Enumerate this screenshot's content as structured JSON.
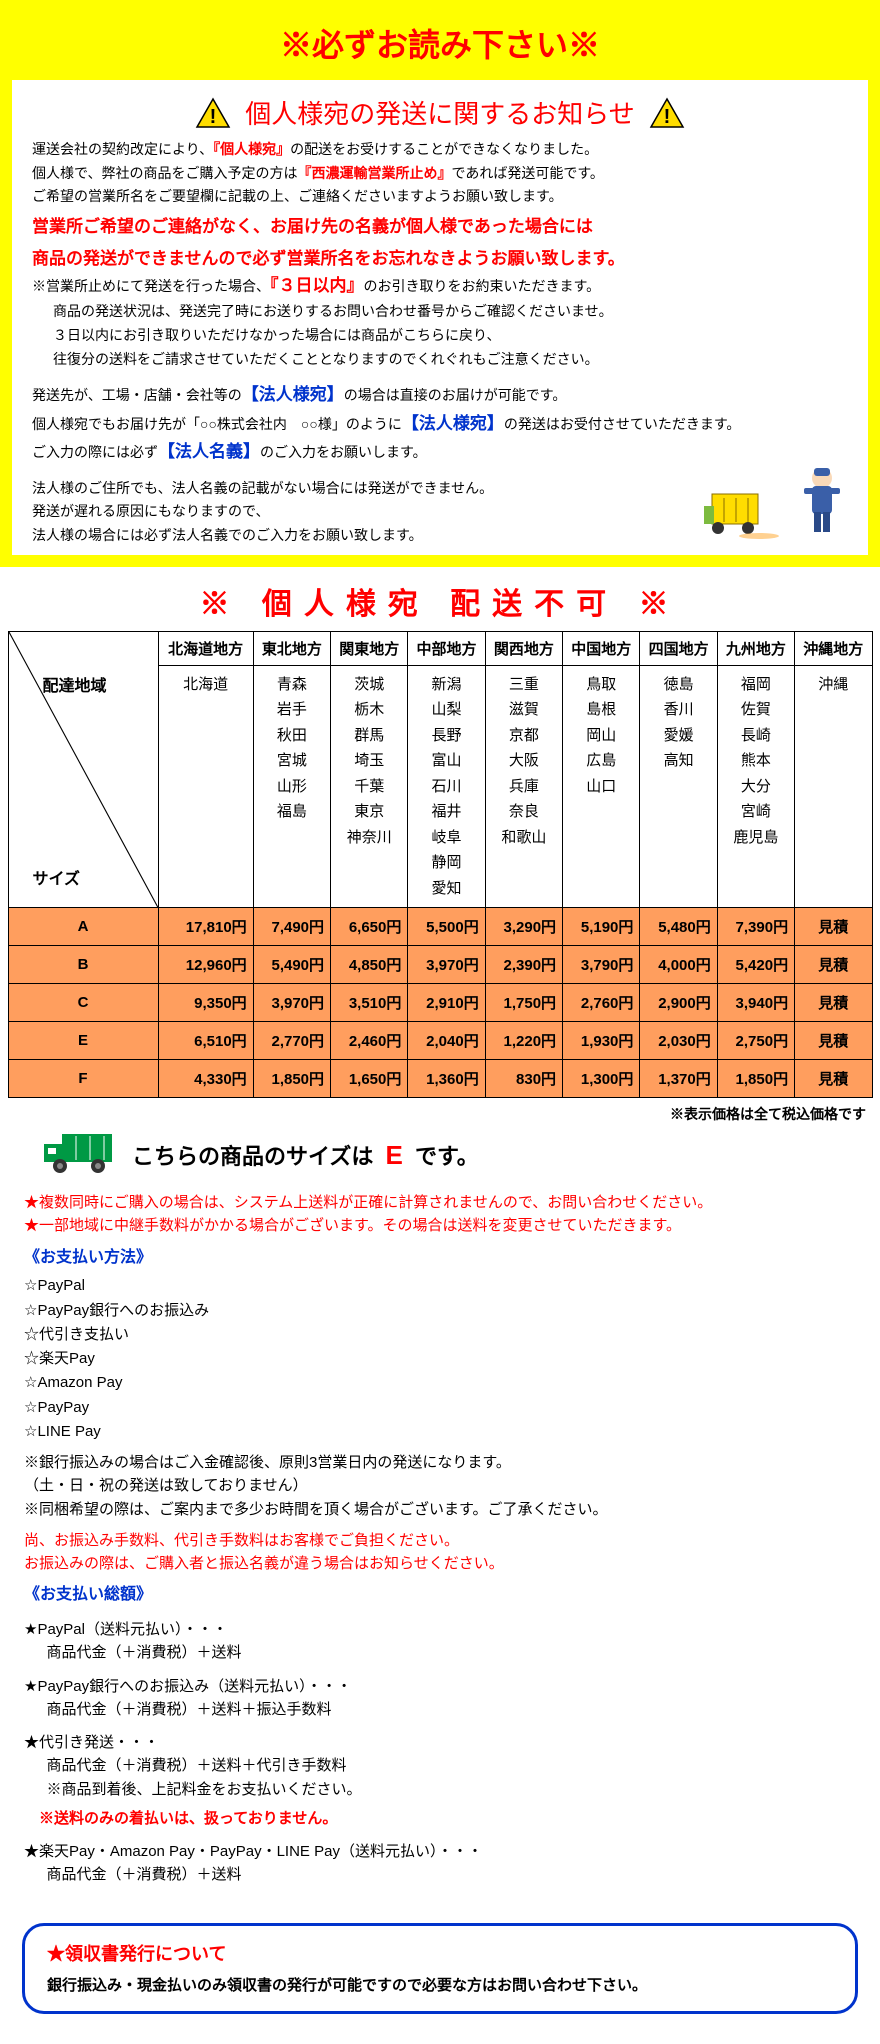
{
  "header": {
    "title": "※必ずお読み下さい※"
  },
  "notice": {
    "title": "個人様宛の発送に関するお知らせ",
    "line1a": "運送会社の契約改定により、",
    "line1b": "『個人様宛』",
    "line1c": "の配送をお受けすることができなくなりました。",
    "line2a": "個人様で、弊社の商品をご購入予定の方は",
    "line2b": "『西濃運輸営業所止め』",
    "line2c": "であれば発送可能です。",
    "line3": "ご希望の営業所名をご要望欄に記載の上、ご連絡くださいますようお願い致します。",
    "warn1": "営業所ご希望のご連絡がなく、お届け先の名義が個人様であった場合には",
    "warn2": "商品の発送ができませんので必ず営業所名をお忘れなきようお願い致します。",
    "line4a": "※営業所止めにて発送を行った場合、",
    "line4b": "『３日以内』",
    "line4c": "のお引き取りをお約束いただきます。",
    "line5": "商品の発送状況は、発送完了時にお送りするお問い合わせ番号からご確認くださいませ。",
    "line6": "３日以内にお引き取りいただけなかった場合には商品がこちらに戻り、",
    "line7": "往復分の送料をご請求させていただくこととなりますのでくれぐれもご注意ください。",
    "line8a": "発送先が、工場・店舗・会社等の",
    "line8b": "【法人様宛】",
    "line8c": "の場合は直接のお届けが可能です。",
    "line9a": "個人様宛でもお届け先が「○○株式会社内　○○様」のように",
    "line9b": "【法人様宛】",
    "line9c": "の発送はお受付させていただきます。",
    "line10a": "ご入力の際には必ず",
    "line10b": "【法人名義】",
    "line10c": "のご入力をお願いします。",
    "line11": "法人様のご住所でも、法人名義の記載がない場合には発送ができません。",
    "line12": "発送が遅れる原因にもなりますので、",
    "line13": "法人様の場合には必ず法人名義でのご入力をお願い致します。"
  },
  "banner": "※ 個人様宛 配送不可 ※",
  "table": {
    "corner_top": "配達地域",
    "corner_bottom": "サイズ",
    "regions": [
      "北海道地方",
      "東北地方",
      "関東地方",
      "中部地方",
      "関西地方",
      "中国地方",
      "四国地方",
      "九州地方",
      "沖縄地方"
    ],
    "prefectures": [
      [
        "北海道"
      ],
      [
        "青森",
        "岩手",
        "秋田",
        "宮城",
        "山形",
        "福島"
      ],
      [
        "茨城",
        "栃木",
        "群馬",
        "埼玉",
        "千葉",
        "東京",
        "神奈川"
      ],
      [
        "新潟",
        "山梨",
        "長野",
        "富山",
        "石川",
        "福井",
        "岐阜",
        "静岡",
        "愛知"
      ],
      [
        "三重",
        "滋賀",
        "京都",
        "大阪",
        "兵庫",
        "奈良",
        "和歌山"
      ],
      [
        "鳥取",
        "島根",
        "岡山",
        "広島",
        "山口"
      ],
      [
        "徳島",
        "香川",
        "愛媛",
        "高知"
      ],
      [
        "福岡",
        "佐賀",
        "長崎",
        "熊本",
        "大分",
        "宮崎",
        "鹿児島"
      ],
      [
        "沖縄"
      ]
    ],
    "sizes": [
      {
        "label": "A",
        "prices": [
          "17,810円",
          "7,490円",
          "6,650円",
          "5,500円",
          "3,290円",
          "5,190円",
          "5,480円",
          "7,390円",
          "見積"
        ]
      },
      {
        "label": "B",
        "prices": [
          "12,960円",
          "5,490円",
          "4,850円",
          "3,970円",
          "2,390円",
          "3,790円",
          "4,000円",
          "5,420円",
          "見積"
        ]
      },
      {
        "label": "C",
        "prices": [
          "9,350円",
          "3,970円",
          "3,510円",
          "2,910円",
          "1,750円",
          "2,760円",
          "2,900円",
          "3,940円",
          "見積"
        ]
      },
      {
        "label": "E",
        "prices": [
          "6,510円",
          "2,770円",
          "2,460円",
          "2,040円",
          "1,220円",
          "1,930円",
          "2,030円",
          "2,750円",
          "見積"
        ]
      },
      {
        "label": "F",
        "prices": [
          "4,330円",
          "1,850円",
          "1,650円",
          "1,360円",
          "830円",
          "1,300円",
          "1,370円",
          "1,850円",
          "見積"
        ]
      }
    ],
    "colors": {
      "size_row_bg": "#ff9e5e",
      "border": "#000000"
    }
  },
  "tax_note": "※表示価格は全て税込価格です",
  "size_notice": {
    "prefix": "こちらの商品のサイズは",
    "size": "E",
    "suffix": "です。"
  },
  "red_notes": {
    "n1": "複数同時にご購入の場合は、システム上送料が正確に計算されませんので、お問い合わせください。",
    "n2": "一部地域に中継手数料がかかる場合がございます。その場合は送料を変更させていただきます。"
  },
  "payment": {
    "heading": "《お支払い方法》",
    "methods": [
      "☆PayPal",
      "☆PayPay銀行へのお振込み",
      "☆代引き支払い",
      "☆楽天Pay",
      "☆Amazon Pay",
      "☆PayPay",
      "☆LINE Pay"
    ],
    "note1": "※銀行振込みの場合はご入金確認後、原則3営業日内の発送になります。",
    "note2": "（土・日・祝の発送は致しておりません）",
    "note3": "※同梱希望の際は、ご案内まで多少お時間を頂く場合がございます。ご了承ください。",
    "warn1": "尚、お振込み手数料、代引き手数料はお客様でご負担ください。",
    "warn2": "お振込みの際は、ご購入者と振込名義が違う場合はお知らせください。"
  },
  "total": {
    "heading": "《お支払い総額》",
    "items": [
      {
        "t": "★PayPal（送料元払い）・・・",
        "s": "商品代金（＋消費税）＋送料"
      },
      {
        "t": "★PayPay銀行へのお振込み（送料元払い）・・・",
        "s": "商品代金（＋消費税）＋送料＋振込手数料"
      },
      {
        "t": "★代引き発送・・・",
        "s": "商品代金（＋消費税）＋送料＋代引き手数料",
        "extra": "※商品到着後、上記料金をお支払いください。"
      }
    ],
    "red": "※送料のみの着払いは、扱っておりません。",
    "last": {
      "t": "★楽天Pay・Amazon Pay・PayPay・LINE Pay（送料元払い）・・・",
      "s": "商品代金（＋消費税）＋送料"
    }
  },
  "receipt": {
    "title": "★領収書発行について",
    "body": "銀行振込み・現金払いのみ領収書の発行が可能ですので必要な方はお問い合わせ下さい。"
  },
  "colors": {
    "yellow": "#ffff00",
    "red": "#ff0000",
    "blue": "#0033cc",
    "green_truck": "#009944"
  }
}
